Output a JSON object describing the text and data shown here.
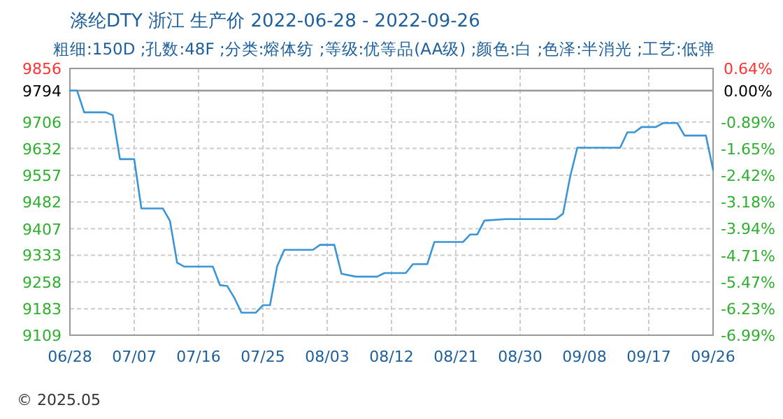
{
  "chart_data": {
    "type": "line",
    "title": "涤纶DTY 浙江 生产价 2022-06-28 - 2022-09-26",
    "subtitle": "粗细:150D ;孔数:48F ;分类:熔体纺 ;等级:优等品(AA级) ;颜色:白 ;色泽:半消光 ;工艺:低弹",
    "x": [
      "2022-06-28",
      "2022-06-29",
      "2022-06-30",
      "2022-07-03",
      "2022-07-04",
      "2022-07-05",
      "2022-07-07",
      "2022-07-08",
      "2022-07-11",
      "2022-07-12",
      "2022-07-13",
      "2022-07-14",
      "2022-07-18",
      "2022-07-19",
      "2022-07-20",
      "2022-07-21",
      "2022-07-22",
      "2022-07-24",
      "2022-07-25",
      "2022-07-26",
      "2022-07-27",
      "2022-07-28",
      "2022-08-01",
      "2022-08-02",
      "2022-08-04",
      "2022-08-05",
      "2022-08-07",
      "2022-08-10",
      "2022-08-11",
      "2022-08-14",
      "2022-08-15",
      "2022-08-17",
      "2022-08-18",
      "2022-08-22",
      "2022-08-23",
      "2022-08-24",
      "2022-08-25",
      "2022-08-28",
      "2022-09-04",
      "2022-09-05",
      "2022-09-06",
      "2022-09-07",
      "2022-09-13",
      "2022-09-14",
      "2022-09-15",
      "2022-09-16",
      "2022-09-18",
      "2022-09-19",
      "2022-09-21",
      "2022-09-22",
      "2022-09-25",
      "2022-09-26"
    ],
    "series": [
      {
        "color": "#3a95d6",
        "values": [
          9794,
          9794,
          9733,
          9733,
          9725,
          9602,
          9602,
          9464,
          9464,
          9429,
          9312,
          9301,
          9301,
          9249,
          9247,
          9214,
          9172,
          9172,
          9193,
          9193,
          9302,
          9348,
          9348,
          9362,
          9362,
          9281,
          9273,
          9273,
          9283,
          9283,
          9308,
          9308,
          9370,
          9370,
          9391,
          9391,
          9430,
          9434,
          9434,
          9449,
          9553,
          9634,
          9634,
          9677,
          9677,
          9692,
          9692,
          9703,
          9703,
          9668,
          9668,
          9572
        ]
      }
    ],
    "xlim": [
      "2022-06-28",
      "2022-09-26"
    ],
    "xticks": [
      {
        "value": "2022-06-28",
        "label": "06/28"
      },
      {
        "value": "2022-07-07",
        "label": "07/07"
      },
      {
        "value": "2022-07-16",
        "label": "07/16"
      },
      {
        "value": "2022-07-25",
        "label": "07/25"
      },
      {
        "value": "2022-08-03",
        "label": "08/03"
      },
      {
        "value": "2022-08-12",
        "label": "08/12"
      },
      {
        "value": "2022-08-21",
        "label": "08/21"
      },
      {
        "value": "2022-08-30",
        "label": "08/30"
      },
      {
        "value": "2022-09-08",
        "label": "09/08"
      },
      {
        "value": "2022-09-17",
        "label": "09/17"
      },
      {
        "value": "2022-09-26",
        "label": "09/26"
      }
    ],
    "ylim": [
      9109,
      9856
    ],
    "yticks": [
      9856,
      9794,
      9706,
      9632,
      9557,
      9482,
      9407,
      9333,
      9258,
      9183,
      9109
    ],
    "y2lim": [
      -6.99,
      0.64
    ],
    "y2ticks": [
      {
        "value": 0.64,
        "label": "0.64%"
      },
      {
        "value": 0,
        "label": "0.00%"
      },
      {
        "value": -0.89,
        "label": "-0.89%"
      },
      {
        "value": -1.65,
        "label": "-1.65%"
      },
      {
        "value": -2.42,
        "label": "-2.42%"
      },
      {
        "value": -3.18,
        "label": "-3.18%"
      },
      {
        "value": -3.94,
        "label": "-3.94%"
      },
      {
        "value": -4.71,
        "label": "-4.71%"
      },
      {
        "value": -5.47,
        "label": "-5.47%"
      },
      {
        "value": -6.23,
        "label": "-6.23%"
      },
      {
        "value": -6.99,
        "label": "-6.99%"
      }
    ],
    "ref_lines": [
      {
        "axis": "y",
        "value": 9794,
        "color": "#999999"
      }
    ],
    "grid": true,
    "annotations": [
      "© 2025.05"
    ]
  }
}
